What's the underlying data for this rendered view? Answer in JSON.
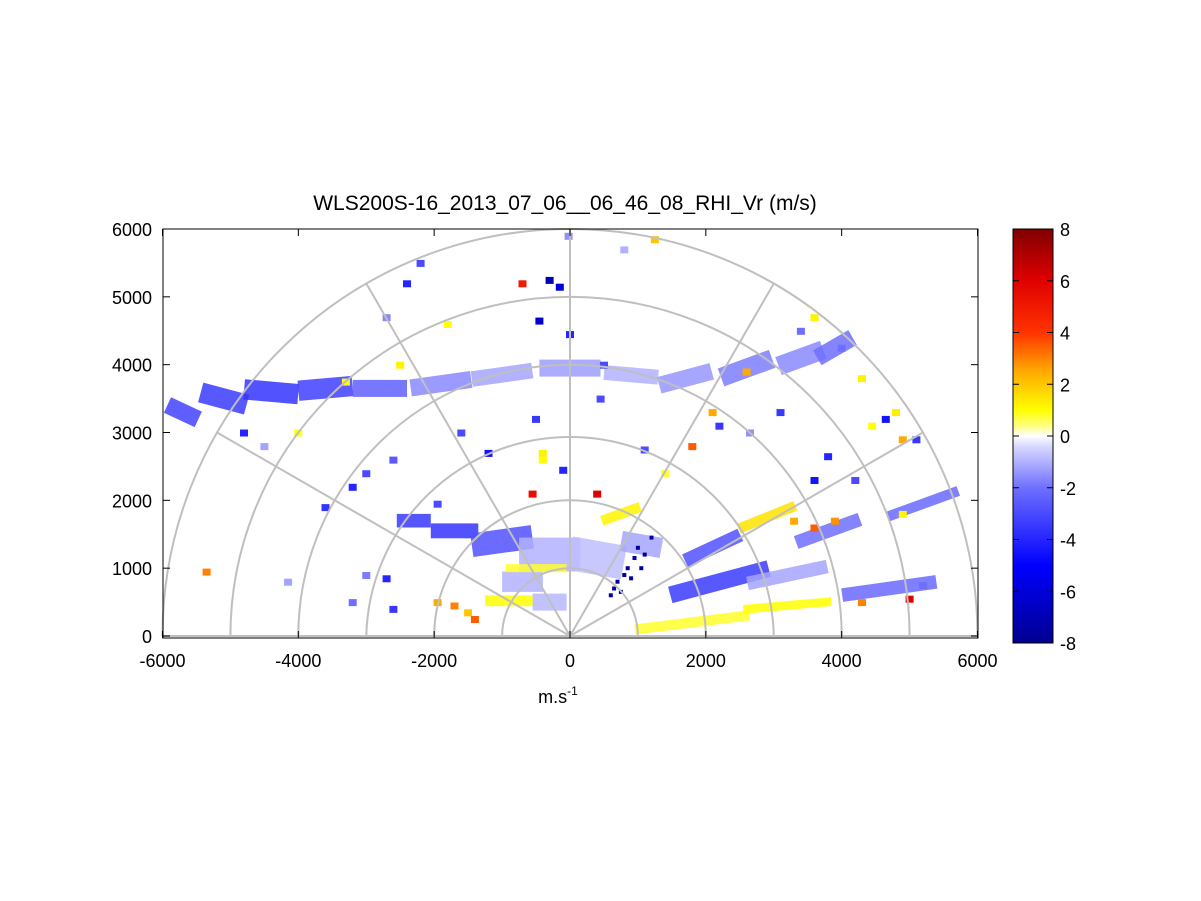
{
  "chart_data": {
    "type": "heatmap",
    "subtype": "polar-rhi-scan",
    "title": "WLS200S-16_2013_07_06__06_46_08_RHI_Vr (m/s)",
    "xlabel": "m.s",
    "xlabel_superscript": "-1",
    "ylabel": "",
    "xlim": [
      -6000,
      6000
    ],
    "ylim": [
      0,
      6000
    ],
    "x_ticks": [
      -6000,
      -4000,
      -2000,
      0,
      2000,
      4000,
      6000
    ],
    "y_ticks": [
      0,
      1000,
      2000,
      3000,
      4000,
      5000,
      6000
    ],
    "x_tick_labels": [
      "-6000",
      "-4000",
      "-2000",
      "0",
      "2000",
      "4000",
      "6000"
    ],
    "y_tick_labels": [
      "0",
      "1000",
      "2000",
      "3000",
      "4000",
      "5000",
      "6000"
    ],
    "range_rings": [
      1000,
      2000,
      3000,
      4000,
      5000,
      6000
    ],
    "radial_lines_deg": [
      0,
      30,
      60,
      90,
      120,
      150,
      180
    ],
    "grid": true,
    "colorbar": {
      "position": "right",
      "min": -8,
      "max": 8,
      "ticks": [
        8,
        6,
        4,
        2,
        0,
        -2,
        -4,
        -6,
        -8
      ],
      "tick_labels": [
        "8",
        "6",
        "4",
        "2",
        "0",
        "-2",
        "-4",
        "-6",
        "-8"
      ],
      "colormap_stops": [
        {
          "v": -8,
          "color": "#00008f"
        },
        {
          "v": -5,
          "color": "#0000ff"
        },
        {
          "v": -2,
          "color": "#6f6fff"
        },
        {
          "v": -0.4,
          "color": "#d8d8ff"
        },
        {
          "v": 0,
          "color": "#ffffff"
        },
        {
          "v": 0.4,
          "color": "#ffff80"
        },
        {
          "v": 1,
          "color": "#ffff00"
        },
        {
          "v": 2.5,
          "color": "#ffaa00"
        },
        {
          "v": 4,
          "color": "#ff3300"
        },
        {
          "v": 6,
          "color": "#e00000"
        },
        {
          "v": 8,
          "color": "#800000"
        }
      ]
    },
    "blobs": [
      {
        "x": -5700,
        "y": 3300,
        "w": 500,
        "h": 250,
        "rot": 25,
        "v": -3.2
      },
      {
        "x": -5100,
        "y": 3500,
        "w": 700,
        "h": 300,
        "rot": 15,
        "v": -3.4
      },
      {
        "x": -4400,
        "y": 3600,
        "w": 800,
        "h": 300,
        "rot": 5,
        "v": -3.6
      },
      {
        "x": -3600,
        "y": 3650,
        "w": 800,
        "h": 300,
        "rot": -5,
        "v": -3.3
      },
      {
        "x": -2800,
        "y": 3650,
        "w": 800,
        "h": 250,
        "rot": 0,
        "v": -2.4
      },
      {
        "x": -1900,
        "y": 3720,
        "w": 900,
        "h": 250,
        "rot": -8,
        "v": -1.6
      },
      {
        "x": -1000,
        "y": 3850,
        "w": 900,
        "h": 230,
        "rot": -8,
        "v": -1.2
      },
      {
        "x": 0,
        "y": 3950,
        "w": 900,
        "h": 250,
        "rot": 0,
        "v": -1.3
      },
      {
        "x": 900,
        "y": 3850,
        "w": 800,
        "h": 220,
        "rot": 5,
        "v": -1.0
      },
      {
        "x": 1700,
        "y": 3800,
        "w": 800,
        "h": 250,
        "rot": -15,
        "v": -1.4
      },
      {
        "x": 2600,
        "y": 3950,
        "w": 800,
        "h": 280,
        "rot": -20,
        "v": -1.8
      },
      {
        "x": 3400,
        "y": 4100,
        "w": 700,
        "h": 280,
        "rot": -20,
        "v": -1.6
      },
      {
        "x": 3900,
        "y": 4250,
        "w": 600,
        "h": 250,
        "rot": -30,
        "v": -2.0
      },
      {
        "x": -2300,
        "y": 1700,
        "w": 500,
        "h": 200,
        "rot": 0,
        "v": -3.5
      },
      {
        "x": -1700,
        "y": 1550,
        "w": 700,
        "h": 220,
        "rot": 0,
        "v": -3.6
      },
      {
        "x": -1000,
        "y": 1400,
        "w": 900,
        "h": 350,
        "rot": -8,
        "v": -2.8
      },
      {
        "x": -300,
        "y": 1200,
        "w": 900,
        "h": 500,
        "rot": 0,
        "v": -1.0
      },
      {
        "x": 400,
        "y": 1150,
        "w": 800,
        "h": 500,
        "rot": 10,
        "v": -0.8
      },
      {
        "x": 1050,
        "y": 1350,
        "w": 600,
        "h": 300,
        "rot": 10,
        "v": -1.2
      },
      {
        "x": -700,
        "y": 800,
        "w": 600,
        "h": 300,
        "rot": 0,
        "v": -1.0
      },
      {
        "x": -300,
        "y": 500,
        "w": 500,
        "h": 250,
        "rot": 0,
        "v": -0.9
      },
      {
        "x": 2100,
        "y": 1300,
        "w": 900,
        "h": 200,
        "rot": -25,
        "v": -2.8
      },
      {
        "x": 2200,
        "y": 800,
        "w": 1500,
        "h": 250,
        "rot": -15,
        "v": -3.4
      },
      {
        "x": 3200,
        "y": 900,
        "w": 1200,
        "h": 200,
        "rot": -12,
        "v": -1.2
      },
      {
        "x": 4700,
        "y": 700,
        "w": 1400,
        "h": 200,
        "rot": -8,
        "v": -2.2
      },
      {
        "x": 3800,
        "y": 1550,
        "w": 1000,
        "h": 200,
        "rot": -20,
        "v": -2.0
      },
      {
        "x": 5200,
        "y": 1950,
        "w": 1100,
        "h": 150,
        "rot": -20,
        "v": -2.2
      },
      {
        "x": 1800,
        "y": 200,
        "w": 1700,
        "h": 150,
        "rot": -7,
        "v": 0.8
      },
      {
        "x": 3200,
        "y": 450,
        "w": 1300,
        "h": 130,
        "rot": -5,
        "v": 1.0
      },
      {
        "x": -900,
        "y": 520,
        "w": 700,
        "h": 160,
        "rot": 0,
        "v": 1.0
      },
      {
        "x": -500,
        "y": 1000,
        "w": 900,
        "h": 120,
        "rot": 0,
        "v": 0.8
      },
      {
        "x": 750,
        "y": 1800,
        "w": 600,
        "h": 150,
        "rot": -20,
        "v": 1.2
      },
      {
        "x": 2900,
        "y": 1750,
        "w": 900,
        "h": 150,
        "rot": -22,
        "v": 1.5
      }
    ],
    "speckles": [
      {
        "x": -5350,
        "y": 950,
        "v": 3.0
      },
      {
        "x": -4150,
        "y": 800,
        "v": -1.2
      },
      {
        "x": -3200,
        "y": 500,
        "v": -2.0
      },
      {
        "x": -3000,
        "y": 900,
        "v": -1.8
      },
      {
        "x": -2600,
        "y": 400,
        "v": -3.5
      },
      {
        "x": -3600,
        "y": 1900,
        "v": -3.6
      },
      {
        "x": -3200,
        "y": 2200,
        "v": -4.0
      },
      {
        "x": -3000,
        "y": 2400,
        "v": -3.0
      },
      {
        "x": -2600,
        "y": 2600,
        "v": -2.6
      },
      {
        "x": -4800,
        "y": 3000,
        "v": -4.0
      },
      {
        "x": -4500,
        "y": 2800,
        "v": -1.2
      },
      {
        "x": -4000,
        "y": 3000,
        "v": 0.9
      },
      {
        "x": -3300,
        "y": 3750,
        "v": 1.0
      },
      {
        "x": -2500,
        "y": 4000,
        "v": 1.2
      },
      {
        "x": -2700,
        "y": 4700,
        "v": -1.6
      },
      {
        "x": -2400,
        "y": 5200,
        "v": -4.0
      },
      {
        "x": -2200,
        "y": 5500,
        "v": -3.0
      },
      {
        "x": -1800,
        "y": 4600,
        "v": 1.0
      },
      {
        "x": -700,
        "y": 5200,
        "v": 5.0
      },
      {
        "x": -300,
        "y": 5250,
        "v": -7.0
      },
      {
        "x": -150,
        "y": 5150,
        "v": -6.0
      },
      {
        "x": -450,
        "y": 4650,
        "v": -6.5
      },
      {
        "x": 0,
        "y": 4450,
        "v": -4.0
      },
      {
        "x": -20,
        "y": 5900,
        "v": -1.5
      },
      {
        "x": 800,
        "y": 5700,
        "v": -1.0
      },
      {
        "x": 1250,
        "y": 5850,
        "v": 2.0
      },
      {
        "x": 500,
        "y": 4000,
        "v": -3.0
      },
      {
        "x": 450,
        "y": 3500,
        "v": -3.0
      },
      {
        "x": -500,
        "y": 3200,
        "v": -3.5
      },
      {
        "x": -1600,
        "y": 3000,
        "v": -3.0
      },
      {
        "x": -1200,
        "y": 2700,
        "v": -4.5
      },
      {
        "x": -400,
        "y": 2700,
        "v": 1.2
      },
      {
        "x": -100,
        "y": 2450,
        "v": -4.0
      },
      {
        "x": 1100,
        "y": 2750,
        "v": -3.0
      },
      {
        "x": 1400,
        "y": 2400,
        "v": 0.8
      },
      {
        "x": 1800,
        "y": 2800,
        "v": 3.5
      },
      {
        "x": 2100,
        "y": 3300,
        "v": 2.5
      },
      {
        "x": 2200,
        "y": 3100,
        "v": -3.5
      },
      {
        "x": 2600,
        "y": 3900,
        "v": 2.5
      },
      {
        "x": 2650,
        "y": 3000,
        "v": -1.5
      },
      {
        "x": 3100,
        "y": 3300,
        "v": -3.5
      },
      {
        "x": 3400,
        "y": 4500,
        "v": -2.0
      },
      {
        "x": 3600,
        "y": 4700,
        "v": 1.2
      },
      {
        "x": 4000,
        "y": 4250,
        "v": -2.0
      },
      {
        "x": 4300,
        "y": 3800,
        "v": 1.2
      },
      {
        "x": 4450,
        "y": 3100,
        "v": 1.0
      },
      {
        "x": 4650,
        "y": 3200,
        "v": -4.5
      },
      {
        "x": 4800,
        "y": 3300,
        "v": 1.3
      },
      {
        "x": 4900,
        "y": 2900,
        "v": 2.5
      },
      {
        "x": 5100,
        "y": 2900,
        "v": -3.5
      },
      {
        "x": 3800,
        "y": 2650,
        "v": -4.0
      },
      {
        "x": 4200,
        "y": 2300,
        "v": -3.0
      },
      {
        "x": 3600,
        "y": 2300,
        "v": -4.5
      },
      {
        "x": 4900,
        "y": 1800,
        "v": 1.2
      },
      {
        "x": 3900,
        "y": 1700,
        "v": 2.8
      },
      {
        "x": 3600,
        "y": 1600,
        "v": 3.5
      },
      {
        "x": 3300,
        "y": 1700,
        "v": 2.5
      },
      {
        "x": 4300,
        "y": 500,
        "v": 3.0
      },
      {
        "x": 5000,
        "y": 550,
        "v": 6.0
      },
      {
        "x": 5200,
        "y": 750,
        "v": -2.0
      },
      {
        "x": -1950,
        "y": 500,
        "v": 2.5
      },
      {
        "x": -1700,
        "y": 450,
        "v": 3.0
      },
      {
        "x": -1500,
        "y": 350,
        "v": 2.0
      },
      {
        "x": -1400,
        "y": 250,
        "v": 3.5
      },
      {
        "x": -550,
        "y": 2100,
        "v": 5.5
      },
      {
        "x": 400,
        "y": 2100,
        "v": 6.0
      },
      {
        "x": -400,
        "y": 2600,
        "v": 1.0
      },
      {
        "x": -1950,
        "y": 1950,
        "v": -3.0
      },
      {
        "x": -2700,
        "y": 850,
        "v": -4.0
      }
    ],
    "dark_speckles": [
      {
        "x": 1000,
        "y": 1300
      },
      {
        "x": 950,
        "y": 1150
      },
      {
        "x": 850,
        "y": 1000
      },
      {
        "x": 800,
        "y": 900
      },
      {
        "x": 700,
        "y": 800
      },
      {
        "x": 650,
        "y": 700
      },
      {
        "x": 600,
        "y": 600
      },
      {
        "x": 900,
        "y": 850
      },
      {
        "x": 1100,
        "y": 1200
      },
      {
        "x": 750,
        "y": 650
      },
      {
        "x": 1200,
        "y": 1450
      },
      {
        "x": 1050,
        "y": 1000
      }
    ]
  }
}
